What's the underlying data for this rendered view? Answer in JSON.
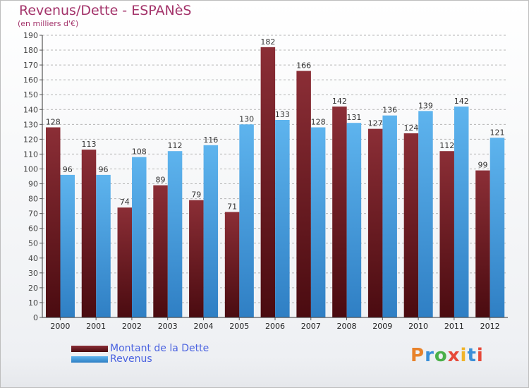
{
  "title": "Revenus/Dette - ESPANèS",
  "subtitle": "(en milliers d'€)",
  "logo_text": "Proxiti",
  "colors": {
    "dette": "#7a1f27",
    "revenus": "#4a9fe0",
    "title": "#a3336a",
    "legend_text": "#4a62e0"
  },
  "chart_data": {
    "type": "bar",
    "title": "Revenus/Dette - ESPANèS",
    "ylabel": "(en milliers d'€)",
    "ylim": [
      0,
      190
    ],
    "ytick_step": 10,
    "grid": "horizontal dashed",
    "legend_position": "bottom-left",
    "categories": [
      "2000",
      "2001",
      "2002",
      "2003",
      "2004",
      "2005",
      "2006",
      "2007",
      "2008",
      "2009",
      "2010",
      "2011",
      "2012"
    ],
    "series": [
      {
        "name": "Montant de la Dette",
        "values": [
          128,
          113,
          74,
          89,
          79,
          71,
          182,
          166,
          142,
          127,
          124,
          112,
          99
        ]
      },
      {
        "name": "Revenus",
        "values": [
          96,
          96,
          108,
          112,
          116,
          130,
          133,
          128,
          131,
          136,
          139,
          142,
          121
        ]
      }
    ]
  }
}
